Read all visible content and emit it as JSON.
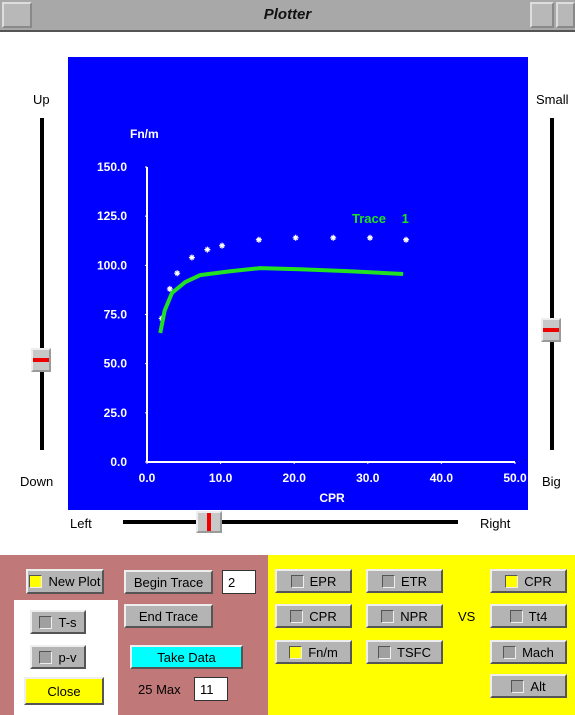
{
  "window": {
    "title": "Plotter"
  },
  "sliders": {
    "left": [
      "Up",
      "Down"
    ],
    "right": [
      "Small",
      "Big"
    ],
    "bottom": [
      "Left",
      "Right"
    ]
  },
  "chart_data": {
    "type": "line",
    "ylabel": "Fn/m",
    "xlabel": "CPR",
    "annotation": "Trace 1",
    "xlim": [
      0,
      50
    ],
    "ylim": [
      0,
      150
    ],
    "xticks": [
      {
        "value": 0,
        "label": "0.0"
      },
      {
        "value": 10,
        "label": "10.0"
      },
      {
        "value": 20,
        "label": "20.0"
      },
      {
        "value": 30,
        "label": "30.0"
      },
      {
        "value": 40,
        "label": "40.0"
      },
      {
        "value": 50,
        "label": "50.0"
      }
    ],
    "yticks": [
      {
        "value": 0,
        "label": "0.0"
      },
      {
        "value": 25,
        "label": "25.0"
      },
      {
        "value": 50,
        "label": "50.0"
      },
      {
        "value": 75,
        "label": "75.0"
      },
      {
        "value": 100,
        "label": "100.0"
      },
      {
        "value": 125,
        "label": "125.0"
      },
      {
        "value": 150,
        "label": "150.0"
      }
    ],
    "series": [
      {
        "mode": "markers",
        "color": "#ffffff",
        "x": [
          2.0,
          3.1,
          4.1,
          6.1,
          8.2,
          10.2,
          15.2,
          20.2,
          25.3,
          30.3,
          35.2
        ],
        "values": [
          73,
          88,
          96,
          104,
          108,
          110,
          113,
          114,
          114,
          114,
          113
        ]
      },
      {
        "mode": "line",
        "color": "#22e022",
        "x": [
          1.8,
          2.4,
          3.4,
          5.2,
          7.2,
          11.3,
          15.4,
          20.8,
          27.6,
          34.8
        ],
        "values": [
          65.6,
          77,
          86,
          91.5,
          95,
          97,
          98.6,
          98,
          97,
          95.6
        ]
      }
    ]
  },
  "controls": {
    "new_plot": "New Plot",
    "ts": "T-s",
    "pv": "p-v",
    "close": "Close",
    "begin_trace": "Begin Trace",
    "trace_number": "2",
    "end_trace": "End Trace",
    "take_data": "Take Data",
    "max_label": "25 Max",
    "max_value": "11",
    "y_options": [
      "EPR",
      "ETR",
      "CPR",
      "NPR",
      "Fn/m",
      "TSFC"
    ],
    "vs": "VS",
    "x_options": [
      "CPR",
      "Tt4",
      "Mach",
      "Alt"
    ]
  }
}
